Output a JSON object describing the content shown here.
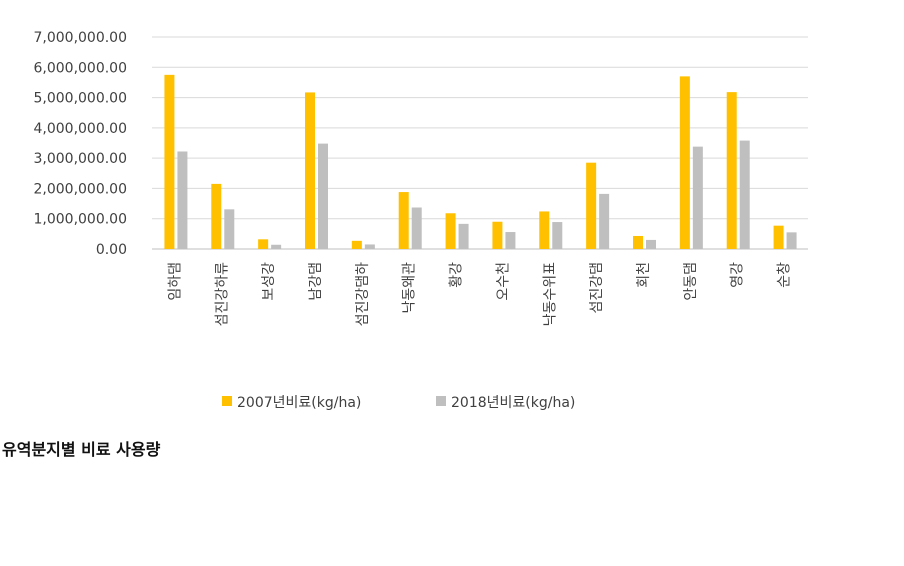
{
  "caption": "유역분지별 비료 사용량",
  "chart_data": {
    "type": "bar",
    "title": "",
    "xlabel": "",
    "ylabel": "",
    "ylim": [
      0,
      7000000
    ],
    "yticks": [
      "0.00",
      "1,000,000.00",
      "2,000,000.00",
      "3,000,000.00",
      "4,000,000.00",
      "5,000,000.00",
      "6,000,000.00",
      "7,000,000.00"
    ],
    "ytick_values": [
      0,
      1000000,
      2000000,
      3000000,
      4000000,
      5000000,
      6000000,
      7000000
    ],
    "grid": true,
    "legend_position": "bottom",
    "categories": [
      "임하댐",
      "섬진강하류",
      "보성강",
      "남강댐",
      "섬진강댐하",
      "낙동왜관",
      "황강",
      "오수천",
      "낙동수위표",
      "섬진강댐",
      "회천",
      "안동댐",
      "영강",
      "순창"
    ],
    "series": [
      {
        "name": "2007년비료(kg/ha)",
        "color": "#FFC000",
        "values": [
          5750000,
          2150000,
          320000,
          5170000,
          270000,
          1880000,
          1180000,
          900000,
          1240000,
          2850000,
          430000,
          5700000,
          5180000,
          770000
        ]
      },
      {
        "name": "2018년비료(kg/ha)",
        "color": "#BFBFBF",
        "values": [
          3220000,
          1310000,
          140000,
          3480000,
          150000,
          1370000,
          830000,
          560000,
          890000,
          1820000,
          300000,
          3380000,
          3580000,
          550000
        ]
      }
    ]
  }
}
